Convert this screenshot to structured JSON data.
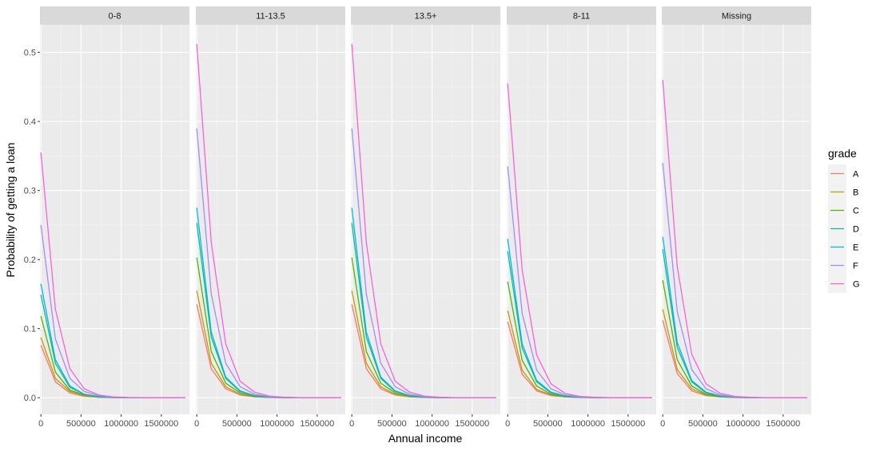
{
  "chart_data": {
    "type": "line",
    "facet_labels": [
      "0-8",
      "11-13.5",
      "13.5+",
      "8-11",
      "Missing"
    ],
    "xlabel": "Annual income",
    "ylabel": "Probability of getting a loan",
    "xlim": [
      -12000,
      1850000
    ],
    "ylim": [
      -0.024,
      0.54
    ],
    "x_ticks": [
      0,
      500000,
      1000000,
      1500000
    ],
    "x_tick_labels": [
      "0",
      "500000",
      "1000000",
      "1500000"
    ],
    "y_ticks": [
      0.0,
      0.1,
      0.2,
      0.3,
      0.4,
      0.5
    ],
    "y_tick_labels": [
      "0.0",
      "0.1",
      "0.2",
      "0.3",
      "0.4",
      "0.5"
    ],
    "grid": true,
    "legend": {
      "title": "grade",
      "placement": "right",
      "entries": [
        "A",
        "B",
        "C",
        "D",
        "E",
        "F",
        "G"
      ]
    },
    "colors": {
      "A": "#F8766D",
      "B": "#C49A00",
      "C": "#53B400",
      "D": "#00C094",
      "E": "#00B6EB",
      "F": "#A58AFF",
      "G": "#FB61D7"
    },
    "x": [
      0,
      180000,
      360000,
      540000,
      720000,
      900000,
      1080000,
      1260000,
      1440000,
      1620000,
      1800000
    ],
    "panels": [
      {
        "label": "0-8",
        "series": [
          {
            "name": "A",
            "values": [
              0.076,
              0.023,
              0.007,
              0.002,
              0.0006,
              0.0002,
              0.0001,
              0,
              0,
              0,
              0
            ]
          },
          {
            "name": "B",
            "values": [
              0.087,
              0.028,
              0.009,
              0.003,
              0.0009,
              0.0003,
              0.0001,
              0,
              0,
              0,
              0
            ]
          },
          {
            "name": "C",
            "values": [
              0.118,
              0.037,
              0.011,
              0.004,
              0.001,
              0.0003,
              0.0001,
              0,
              0,
              0,
              0
            ]
          },
          {
            "name": "D",
            "values": [
              0.149,
              0.05,
              0.015,
              0.005,
              0.0015,
              0.0005,
              0.0001,
              0,
              0,
              0,
              0
            ]
          },
          {
            "name": "E",
            "values": [
              0.165,
              0.055,
              0.017,
              0.005,
              0.0016,
              0.0005,
              0.0002,
              0,
              0,
              0,
              0
            ]
          },
          {
            "name": "F",
            "values": [
              0.25,
              0.085,
              0.028,
              0.009,
              0.003,
              0.001,
              0.0003,
              0.0001,
              0,
              0,
              0
            ]
          },
          {
            "name": "G",
            "values": [
              0.355,
              0.128,
              0.042,
              0.013,
              0.004,
              0.0013,
              0.0004,
              0.0001,
              0,
              0,
              0
            ]
          }
        ]
      },
      {
        "label": "11-13.5",
        "series": [
          {
            "name": "A",
            "values": [
              0.135,
              0.042,
              0.013,
              0.004,
              0.0012,
              0.0004,
              0.0001,
              0,
              0,
              0,
              0
            ]
          },
          {
            "name": "B",
            "values": [
              0.155,
              0.05,
              0.016,
              0.005,
              0.0015,
              0.0005,
              0.0001,
              0,
              0,
              0,
              0
            ]
          },
          {
            "name": "C",
            "values": [
              0.203,
              0.067,
              0.021,
              0.007,
              0.002,
              0.0006,
              0.0002,
              0,
              0,
              0,
              0
            ]
          },
          {
            "name": "D",
            "values": [
              0.253,
              0.088,
              0.028,
              0.009,
              0.003,
              0.0009,
              0.0003,
              0.0001,
              0,
              0,
              0
            ]
          },
          {
            "name": "E",
            "values": [
              0.275,
              0.095,
              0.03,
              0.01,
              0.003,
              0.001,
              0.0003,
              0.0001,
              0,
              0,
              0
            ]
          },
          {
            "name": "F",
            "values": [
              0.39,
              0.15,
              0.05,
              0.016,
              0.005,
              0.0016,
              0.0005,
              0.0001,
              0,
              0,
              0
            ]
          },
          {
            "name": "G",
            "values": [
              0.512,
              0.225,
              0.078,
              0.024,
              0.008,
              0.0025,
              0.0008,
              0.0002,
              0.0001,
              0,
              0
            ]
          }
        ]
      },
      {
        "label": "13.5+",
        "series": [
          {
            "name": "A",
            "values": [
              0.135,
              0.042,
              0.013,
              0.004,
              0.0012,
              0.0004,
              0.0001,
              0,
              0,
              0,
              0
            ]
          },
          {
            "name": "B",
            "values": [
              0.155,
              0.05,
              0.016,
              0.005,
              0.0015,
              0.0005,
              0.0001,
              0,
              0,
              0,
              0
            ]
          },
          {
            "name": "C",
            "values": [
              0.203,
              0.067,
              0.021,
              0.007,
              0.002,
              0.0006,
              0.0002,
              0,
              0,
              0,
              0
            ]
          },
          {
            "name": "D",
            "values": [
              0.253,
              0.088,
              0.028,
              0.009,
              0.003,
              0.0009,
              0.0003,
              0.0001,
              0,
              0,
              0
            ]
          },
          {
            "name": "E",
            "values": [
              0.275,
              0.095,
              0.03,
              0.01,
              0.003,
              0.001,
              0.0003,
              0.0001,
              0,
              0,
              0
            ]
          },
          {
            "name": "F",
            "values": [
              0.39,
              0.15,
              0.05,
              0.016,
              0.005,
              0.0016,
              0.0005,
              0.0001,
              0,
              0,
              0
            ]
          },
          {
            "name": "G",
            "values": [
              0.512,
              0.225,
              0.078,
              0.024,
              0.008,
              0.0025,
              0.0008,
              0.0002,
              0.0001,
              0,
              0
            ]
          }
        ]
      },
      {
        "label": "8-11",
        "series": [
          {
            "name": "A",
            "values": [
              0.11,
              0.034,
              0.01,
              0.003,
              0.001,
              0.0003,
              0.0001,
              0,
              0,
              0,
              0
            ]
          },
          {
            "name": "B",
            "values": [
              0.126,
              0.04,
              0.012,
              0.004,
              0.0012,
              0.0004,
              0.0001,
              0,
              0,
              0,
              0
            ]
          },
          {
            "name": "C",
            "values": [
              0.168,
              0.054,
              0.017,
              0.005,
              0.0016,
              0.0005,
              0.0002,
              0,
              0,
              0,
              0
            ]
          },
          {
            "name": "D",
            "values": [
              0.212,
              0.072,
              0.023,
              0.007,
              0.002,
              0.0007,
              0.0002,
              0,
              0,
              0,
              0
            ]
          },
          {
            "name": "E",
            "values": [
              0.23,
              0.078,
              0.025,
              0.008,
              0.0025,
              0.0008,
              0.0002,
              0,
              0,
              0,
              0
            ]
          },
          {
            "name": "F",
            "values": [
              0.335,
              0.122,
              0.04,
              0.013,
              0.004,
              0.0013,
              0.0004,
              0.0001,
              0,
              0,
              0
            ]
          },
          {
            "name": "G",
            "values": [
              0.455,
              0.185,
              0.062,
              0.02,
              0.006,
              0.002,
              0.0006,
              0.0002,
              0,
              0,
              0
            ]
          }
        ]
      },
      {
        "label": "Missing",
        "series": [
          {
            "name": "A",
            "values": [
              0.112,
              0.035,
              0.01,
              0.003,
              0.001,
              0.0003,
              0.0001,
              0,
              0,
              0,
              0
            ]
          },
          {
            "name": "B",
            "values": [
              0.128,
              0.041,
              0.013,
              0.004,
              0.0012,
              0.0004,
              0.0001,
              0,
              0,
              0,
              0
            ]
          },
          {
            "name": "C",
            "values": [
              0.17,
              0.055,
              0.017,
              0.005,
              0.0016,
              0.0005,
              0.0002,
              0,
              0,
              0,
              0
            ]
          },
          {
            "name": "D",
            "values": [
              0.215,
              0.073,
              0.023,
              0.007,
              0.002,
              0.0007,
              0.0002,
              0,
              0,
              0,
              0
            ]
          },
          {
            "name": "E",
            "values": [
              0.233,
              0.08,
              0.025,
              0.008,
              0.0025,
              0.0008,
              0.0002,
              0,
              0,
              0,
              0
            ]
          },
          {
            "name": "F",
            "values": [
              0.34,
              0.125,
              0.041,
              0.013,
              0.004,
              0.0013,
              0.0004,
              0.0001,
              0,
              0,
              0
            ]
          },
          {
            "name": "G",
            "values": [
              0.46,
              0.19,
              0.063,
              0.02,
              0.006,
              0.002,
              0.0006,
              0.0002,
              0,
              0,
              0
            ]
          }
        ]
      }
    ]
  }
}
